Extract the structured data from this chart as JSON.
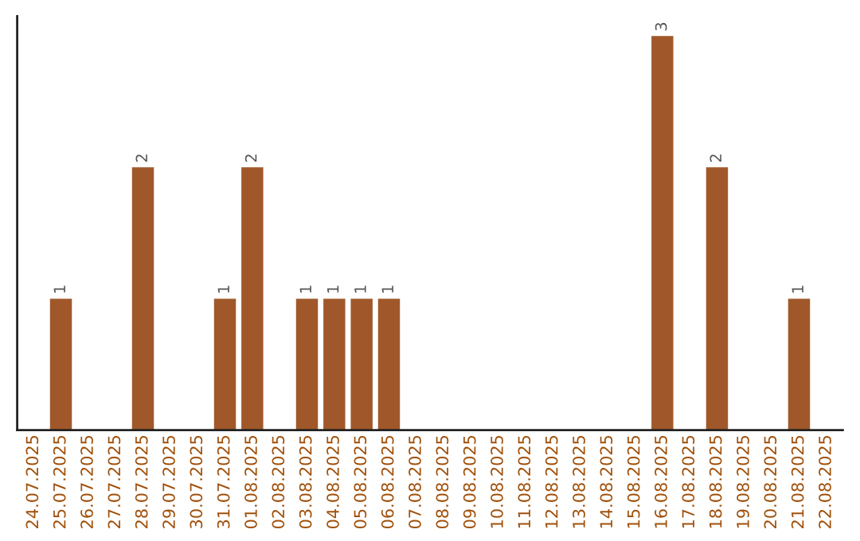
{
  "chart_data": {
    "type": "bar",
    "categories": [
      "24.07.2025",
      "25.07.2025",
      "26.07.2025",
      "27.07.2025",
      "28.07.2025",
      "29.07.2025",
      "30.07.2025",
      "31.07.2025",
      "01.08.2025",
      "02.08.2025",
      "03.08.2025",
      "04.08.2025",
      "05.08.2025",
      "06.08.2025",
      "07.08.2025",
      "08.08.2025",
      "09.08.2025",
      "10.08.2025",
      "11.08.2025",
      "12.08.2025",
      "13.08.2025",
      "14.08.2025",
      "15.08.2025",
      "16.08.2025",
      "17.08.2025",
      "18.08.2025",
      "19.08.2025",
      "20.08.2025",
      "21.08.2025",
      "22.08.2025"
    ],
    "values": [
      0,
      1,
      0,
      0,
      2,
      0,
      0,
      1,
      2,
      0,
      1,
      1,
      1,
      1,
      0,
      0,
      0,
      0,
      0,
      0,
      0,
      0,
      0,
      3,
      0,
      2,
      0,
      0,
      1,
      0
    ],
    "value_labels": [
      null,
      "1",
      null,
      null,
      "2",
      null,
      null,
      "1",
      "2",
      null,
      "1",
      "1",
      "1",
      "1",
      null,
      null,
      null,
      null,
      null,
      null,
      null,
      null,
      null,
      "3",
      null,
      "2",
      null,
      null,
      "1",
      null
    ],
    "color": "#a0582a",
    "tick_labels": "x",
    "grid": false,
    "legend": false
  }
}
